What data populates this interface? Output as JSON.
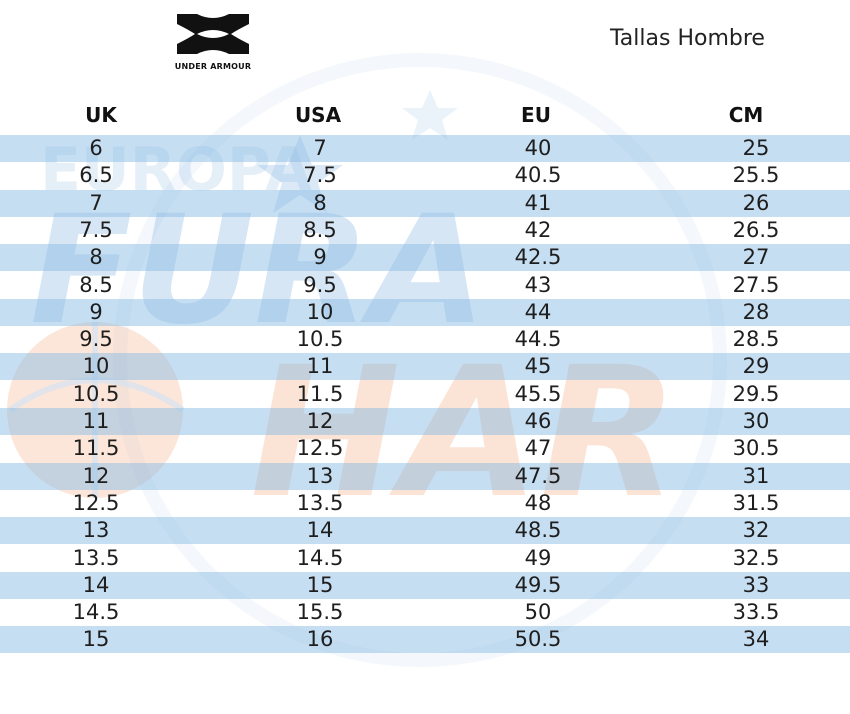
{
  "brand": {
    "name": "UNDER ARMOUR"
  },
  "title": "Tallas Hombre",
  "watermark": {
    "text_top": "EUROPA",
    "text_mid": "FURA",
    "text_bottom": "HAR"
  },
  "columns": [
    "UK",
    "USA",
    "EU",
    "CM"
  ],
  "rows": [
    [
      "6",
      "7",
      "40",
      "25"
    ],
    [
      "6.5",
      "7.5",
      "40.5",
      "25.5"
    ],
    [
      "7",
      "8",
      "41",
      "26"
    ],
    [
      "7.5",
      "8.5",
      "42",
      "26.5"
    ],
    [
      "8",
      "9",
      "42.5",
      "27"
    ],
    [
      "8.5",
      "9.5",
      "43",
      "27.5"
    ],
    [
      "9",
      "10",
      "44",
      "28"
    ],
    [
      "9.5",
      "10.5",
      "44.5",
      "28.5"
    ],
    [
      "10",
      "11",
      "45",
      "29"
    ],
    [
      "10.5",
      "11.5",
      "45.5",
      "29.5"
    ],
    [
      "11",
      "12",
      "46",
      "30"
    ],
    [
      "11.5",
      "12.5",
      "47",
      "30.5"
    ],
    [
      "12",
      "13",
      "47.5",
      "31"
    ],
    [
      "12.5",
      "13.5",
      "48",
      "31.5"
    ],
    [
      "13",
      "14",
      "48.5",
      "32"
    ],
    [
      "13.5",
      "14.5",
      "49",
      "32.5"
    ],
    [
      "14",
      "15",
      "49.5",
      "33"
    ],
    [
      "14.5",
      "15.5",
      "50",
      "33.5"
    ],
    [
      "15",
      "16",
      "50.5",
      "34"
    ]
  ],
  "colors": {
    "band": "#88bae4",
    "watermark_blue": "#6fa8dc",
    "watermark_orange": "#f4a477"
  }
}
